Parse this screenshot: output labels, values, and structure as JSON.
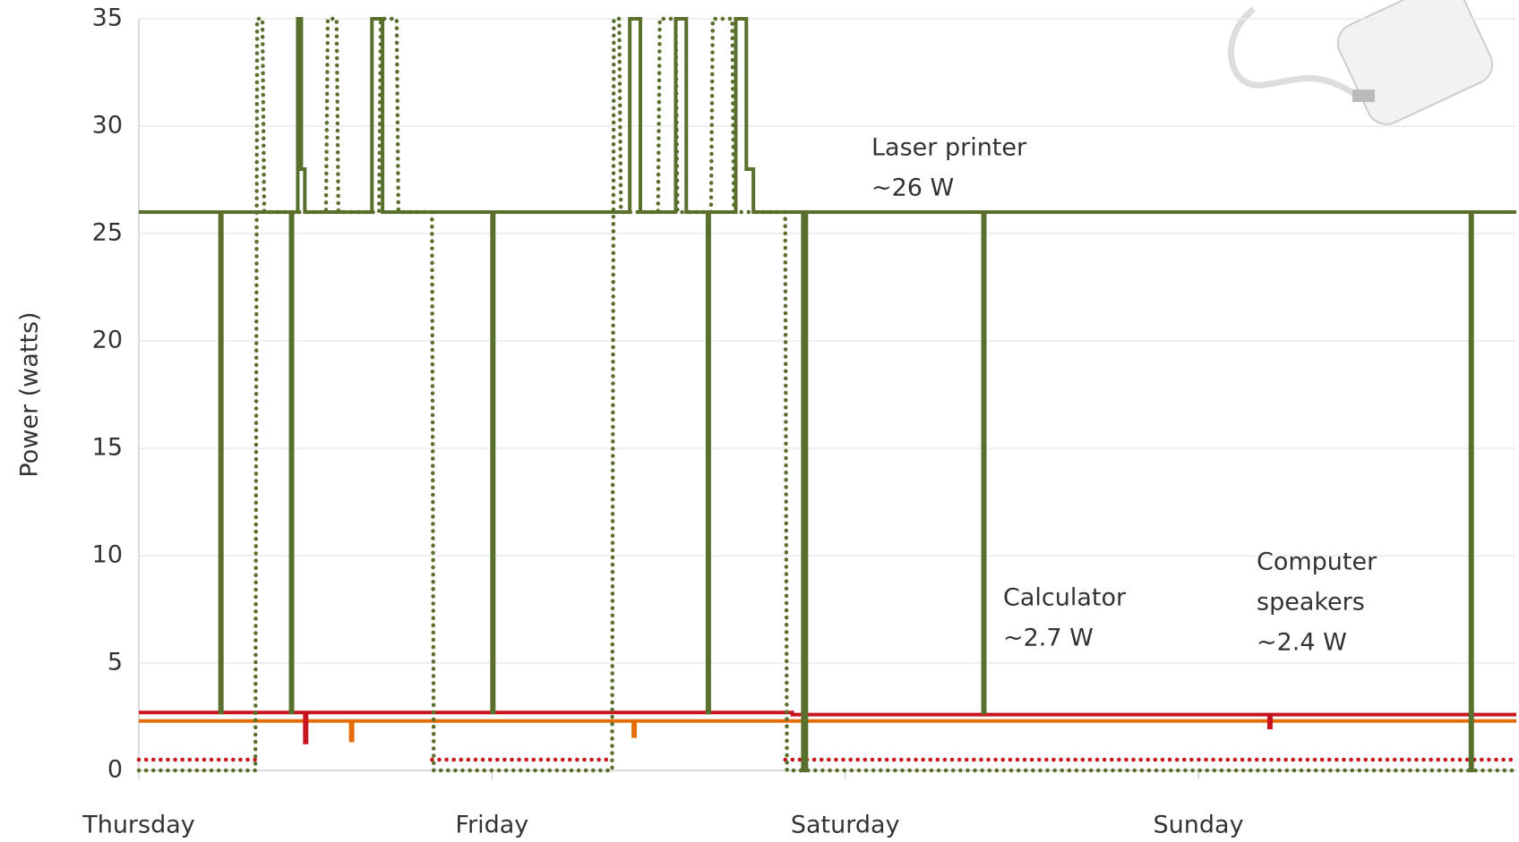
{
  "chart_data": {
    "type": "line",
    "y_label": "Power (watts)",
    "ylim": [
      0,
      35
    ],
    "yticks": [
      0,
      5,
      10,
      15,
      20,
      25,
      30,
      35
    ],
    "grid": true,
    "xlim": [
      0,
      3.9
    ],
    "xticks": [
      {
        "value": 0,
        "label": "Thursday"
      },
      {
        "value": 1,
        "label": "Friday"
      },
      {
        "value": 2,
        "label": "Saturday"
      },
      {
        "value": 3,
        "label": "Sunday"
      }
    ],
    "series": [
      {
        "color": "#e46c0a",
        "style": "solid",
        "x": [
          0,
          0.6,
          0.6,
          0.605,
          0.605,
          1.4,
          1.4,
          1.405,
          1.405,
          3.9
        ],
        "values": [
          2.3,
          2.3,
          1.4,
          1.4,
          2.3,
          2.3,
          1.6,
          1.6,
          2.3,
          2.3
        ]
      },
      {
        "color": "#c8141e",
        "style": "solid",
        "x": [
          0,
          0.47,
          0.47,
          0.475,
          0.475,
          1.85,
          1.85,
          3.2,
          3.2,
          3.205,
          3.205,
          3.9
        ],
        "values": [
          2.7,
          2.7,
          1.3,
          1.3,
          2.7,
          2.7,
          2.6,
          2.6,
          2.0,
          2.0,
          2.6,
          2.6
        ]
      },
      {
        "color": "#c8141e",
        "style": "dotted",
        "x": [
          0,
          0.33,
          0.5,
          0.83,
          1.34,
          1.5,
          1.83,
          3.9
        ],
        "values": [
          0.5,
          0.5,
          null,
          0.5,
          0.5,
          null,
          0.5,
          0.5
        ]
      },
      {
        "color": "#596f2c",
        "style": "dotted",
        "x": [
          0,
          0.33,
          0.335,
          0.35,
          0.355,
          0.53,
          0.535,
          0.56,
          0.565,
          0.68,
          0.685,
          0.73,
          0.735,
          0.83,
          0.835,
          1.34,
          1.345,
          1.36,
          1.365,
          1.47,
          1.475,
          1.52,
          1.525,
          1.62,
          1.625,
          1.68,
          1.685,
          1.83,
          1.835,
          3.9
        ],
        "values": [
          0,
          0,
          35,
          35,
          26,
          26,
          35,
          35,
          26,
          26,
          35,
          35,
          26,
          26,
          0,
          0,
          35,
          35,
          26,
          26,
          35,
          35,
          26,
          26,
          35,
          35,
          26,
          26,
          0,
          0
        ]
      },
      {
        "color": "#596f2c",
        "style": "solid",
        "x": [
          0,
          0.23,
          0.23,
          0.235,
          0.235,
          0.43,
          0.43,
          0.435,
          0.435,
          0.45,
          0.45,
          0.46,
          0.46,
          0.47,
          0.47,
          0.66,
          0.66,
          0.69,
          0.69,
          1.0,
          1.0,
          1.005,
          1.005,
          1.39,
          1.39,
          1.42,
          1.42,
          1.52,
          1.52,
          1.55,
          1.55,
          1.61,
          1.61,
          1.615,
          1.615,
          1.69,
          1.69,
          1.72,
          1.72,
          1.74,
          1.74,
          1.88,
          1.88,
          1.89,
          1.89,
          2.39,
          2.39,
          2.395,
          2.395,
          3.77,
          3.77,
          3.775,
          3.775,
          3.9
        ],
        "values": [
          26,
          26,
          2.7,
          2.7,
          26,
          26,
          2.7,
          2.7,
          26,
          26,
          35,
          35,
          28,
          28,
          26,
          26,
          35,
          35,
          26,
          26,
          2.7,
          2.7,
          26,
          26,
          35,
          35,
          26,
          26,
          35,
          35,
          26,
          26,
          2.7,
          2.7,
          26,
          26,
          35,
          35,
          28,
          28,
          26,
          26,
          0,
          0,
          26,
          26,
          2.7,
          2.7,
          26,
          26,
          0,
          0,
          26,
          26
        ]
      }
    ],
    "annotations": [
      {
        "lines": [
          "Laser printer",
          "~26 W"
        ],
        "color": "#596f2c"
      },
      {
        "lines": [
          "Calculator",
          "~2.7 W"
        ],
        "color": "#c8141e"
      },
      {
        "lines": [
          "Computer",
          "speakers",
          "~2.4 W"
        ],
        "color": "#e46c0a"
      }
    ]
  }
}
